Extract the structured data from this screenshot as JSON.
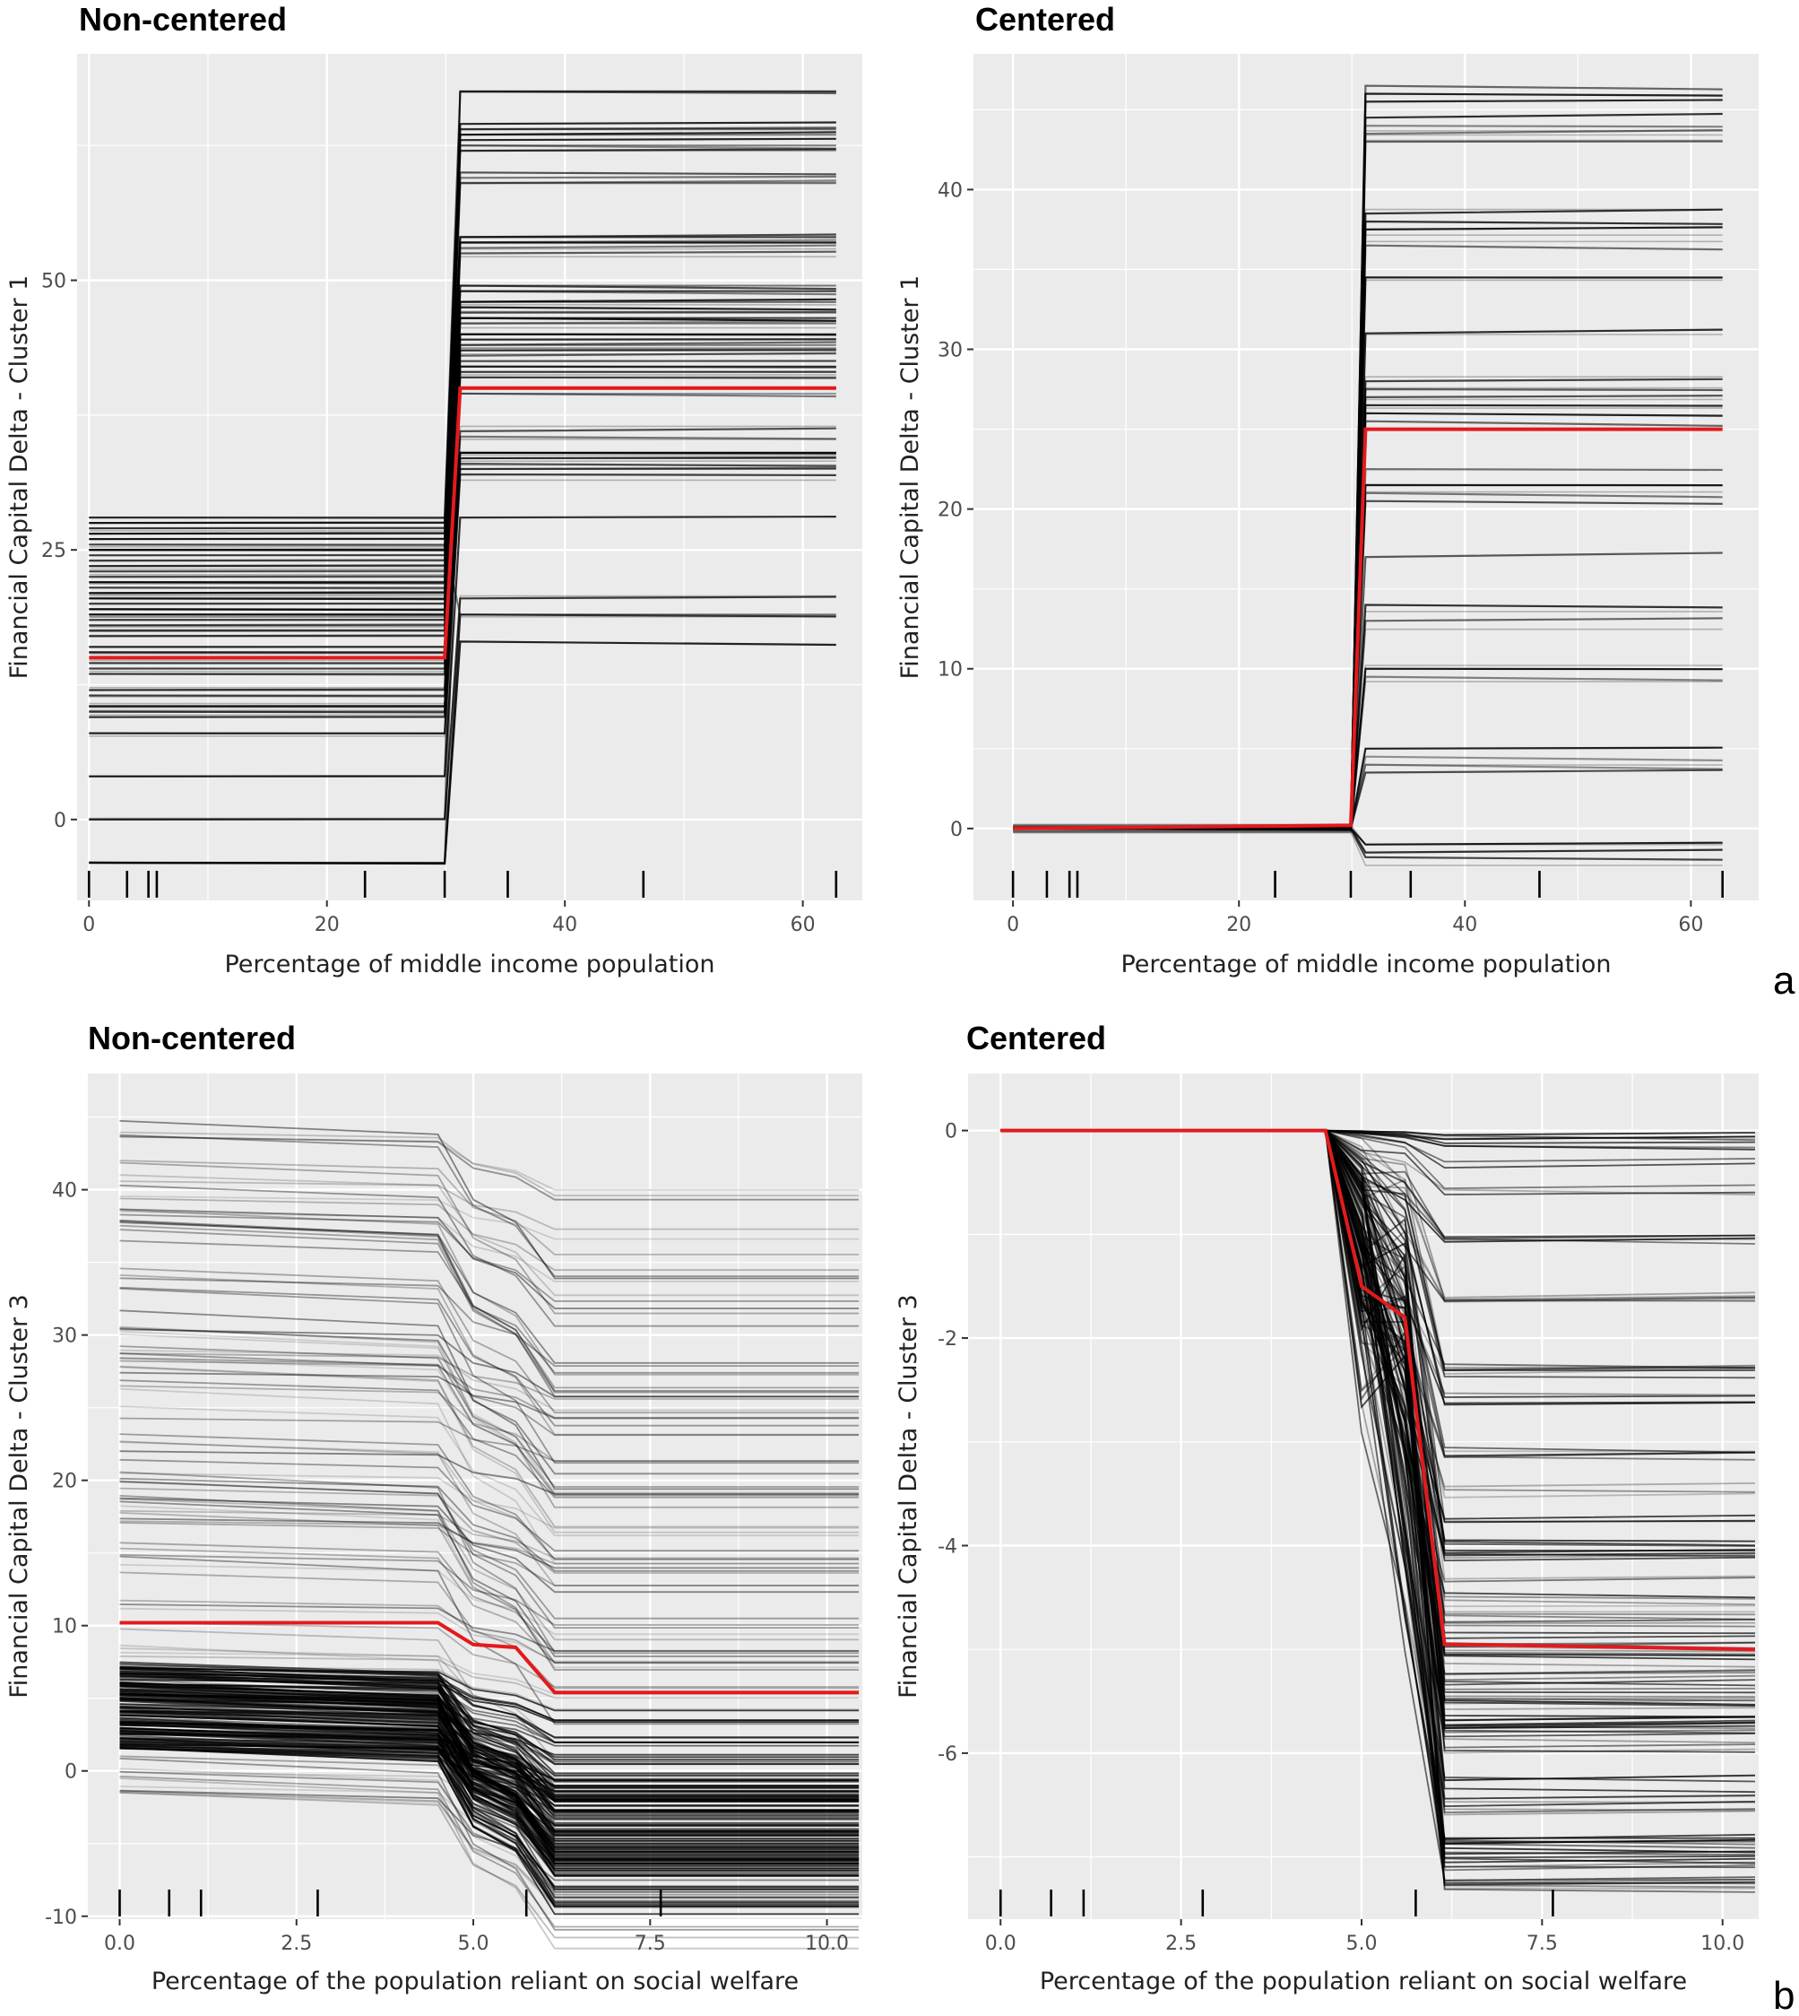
{
  "figure": {
    "labels": [
      "a",
      "b"
    ]
  },
  "chart_data": [
    {
      "type": "line",
      "title": "Non-centered",
      "xlabel": "Percentage of middle income population",
      "ylabel": "Financial Capital Delta - Cluster 1",
      "xlim": [
        -1.0,
        65.0
      ],
      "ylim": [
        -7.5,
        71.0
      ],
      "x_ticks": [
        0,
        20,
        40,
        60
      ],
      "y_ticks": [
        0,
        25,
        50
      ],
      "x_tick_labels": [
        "0",
        "20",
        "40",
        "60"
      ],
      "y_tick_labels": [
        "0",
        "25",
        "50"
      ],
      "grid": true,
      "rug_x": [
        0,
        3.2,
        5.0,
        5.7,
        23.2,
        29.9,
        35.2,
        46.6,
        62.8
      ],
      "ice_left_levels": [
        -4,
        0,
        4,
        8,
        9.5,
        10,
        10.5,
        11.5,
        12,
        13.5,
        14,
        14.5,
        15.5,
        16,
        17,
        17.5,
        18,
        18.5,
        19,
        19.5,
        20,
        20.5,
        21,
        21.5,
        22,
        22.5,
        23,
        23.5,
        24,
        24.5,
        25,
        25.5,
        26,
        26.5,
        27,
        27.5,
        28
      ],
      "ice_right_levels": [
        16.5,
        19,
        20.5,
        28,
        32,
        32.5,
        33,
        33.5,
        34,
        35.5,
        36,
        39.5,
        40,
        41,
        41.5,
        42,
        42.5,
        43,
        43.5,
        44,
        44.5,
        45,
        46,
        46.5,
        47,
        47.5,
        48,
        49,
        49.5,
        52.5,
        53,
        53.5,
        54,
        59,
        59.5,
        60,
        62,
        62.5,
        63,
        63.5,
        64,
        64.5,
        67.5
      ],
      "step": {
        "x_start": 29.9,
        "x_end": 31.2
      },
      "pdp": {
        "x": [
          0,
          29.9,
          31.2,
          62.8
        ],
        "y": [
          15,
          15,
          40,
          40
        ],
        "color": "#e31a1c"
      }
    },
    {
      "type": "line",
      "title": "Centered",
      "xlabel": "Percentage of middle income population",
      "ylabel": "Financial Capital Delta - Cluster 1",
      "xlim": [
        -3.5,
        66.0
      ],
      "ylim": [
        -4.5,
        48.5
      ],
      "x_ticks": [
        0,
        20,
        40,
        60
      ],
      "y_ticks": [
        0,
        10,
        20,
        30,
        40
      ],
      "x_tick_labels": [
        "0",
        "20",
        "40",
        "60"
      ],
      "y_tick_labels": [
        "0",
        "10",
        "20",
        "30",
        "40"
      ],
      "grid": true,
      "rug_x": [
        0,
        3.0,
        5.0,
        5.7,
        23.2,
        29.9,
        35.2,
        46.6,
        62.8
      ],
      "ice_right_levels": [
        -1.8,
        -1.5,
        -1.0,
        3.5,
        4.0,
        4.5,
        5.0,
        9.5,
        10.0,
        13.0,
        14.0,
        17.0,
        20.5,
        21.0,
        21.5,
        22.5,
        25.5,
        26.0,
        26.5,
        27.0,
        27.5,
        28.0,
        31.0,
        34.5,
        36.5,
        37.5,
        38.0,
        38.5,
        43.0,
        43.5,
        44.0,
        44.5,
        45.5,
        46.0,
        46.5
      ],
      "step": {
        "x_start": 29.9,
        "x_end": 31.2
      },
      "pdp": {
        "x": [
          0,
          29.9,
          31.2,
          62.8
        ],
        "y": [
          0,
          0.2,
          25,
          25
        ],
        "color": "#e31a1c"
      }
    },
    {
      "type": "line",
      "title": "Non-centered",
      "xlabel": "Percentage of the population reliant on social welfare",
      "ylabel": "Financial Capital Delta - Cluster 3",
      "xlim": [
        -0.45,
        10.5
      ],
      "ylim": [
        -10.2,
        48.0
      ],
      "x_ticks": [
        0,
        2.5,
        5,
        7.5,
        10
      ],
      "y_ticks": [
        -10,
        0,
        10,
        20,
        30,
        40
      ],
      "x_tick_labels": [
        "0.0",
        "2.5",
        "5.0",
        "7.5",
        "10.0"
      ],
      "y_tick_labels": [
        "-10",
        "0",
        "10",
        "20",
        "30",
        "40"
      ],
      "grid": true,
      "rug_x": [
        0,
        0.7,
        1.15,
        2.8,
        5.75,
        7.65
      ],
      "ice_band": {
        "y_min": -1.5,
        "y_max": 46.5,
        "dense_min": 1.5,
        "dense_max": 7.5
      },
      "ice_x": [
        0,
        4.5,
        5.0,
        5.6,
        6.15,
        10.45
      ],
      "ice_offsets": [
        0,
        -0.6,
        -3.5,
        -4.5,
        -7.0,
        -7.0
      ],
      "pdp": {
        "x": [
          0,
          4.5,
          5.0,
          5.6,
          6.15,
          10.45
        ],
        "y": [
          10.2,
          10.2,
          8.7,
          8.5,
          5.4,
          5.4
        ],
        "color": "#e31a1c"
      }
    },
    {
      "type": "line",
      "title": "Centered",
      "xlabel": "Percentage of the population reliant on social welfare",
      "ylabel": "Financial Capital Delta - Cluster 3",
      "xlim": [
        -0.45,
        10.5
      ],
      "ylim": [
        -7.6,
        0.55
      ],
      "x_ticks": [
        0,
        2.5,
        5,
        7.5,
        10
      ],
      "y_ticks": [
        -6,
        -4,
        -2,
        0
      ],
      "x_tick_labels": [
        "0.0",
        "2.5",
        "5.0",
        "7.5",
        "10.0"
      ],
      "y_tick_labels": [
        "-6",
        "-4",
        "-2",
        "0"
      ],
      "grid": true,
      "rug_x": [
        0,
        0.7,
        1.15,
        2.8,
        5.75,
        7.65
      ],
      "ice_x": [
        0,
        4.5,
        5.0,
        5.6,
        6.15,
        10.45
      ],
      "ice_final_levels": [
        -0.1,
        -0.3,
        -0.6,
        -1.0,
        -1.6,
        -1.7,
        -2.3,
        -2.6,
        -3.1,
        -3.5,
        -3.8,
        -4.0,
        -4.05,
        -4.1,
        -4.3,
        -4.5,
        -4.6,
        -4.7,
        -4.9,
        -5.0,
        -5.1,
        -5.2,
        -5.25,
        -5.3,
        -5.4,
        -5.5,
        -5.6,
        -5.7,
        -5.75,
        -5.8,
        -6.0,
        -6.2,
        -6.3,
        -6.5,
        -6.6,
        -6.8,
        -6.9,
        -7.0,
        -7.1,
        -7.2,
        -7.3
      ],
      "pdp": {
        "x": [
          0,
          4.5,
          5.0,
          5.6,
          6.15,
          10.45
        ],
        "y": [
          0,
          0,
          -1.5,
          -1.8,
          -4.95,
          -5.0
        ],
        "color": "#e31a1c"
      }
    }
  ]
}
